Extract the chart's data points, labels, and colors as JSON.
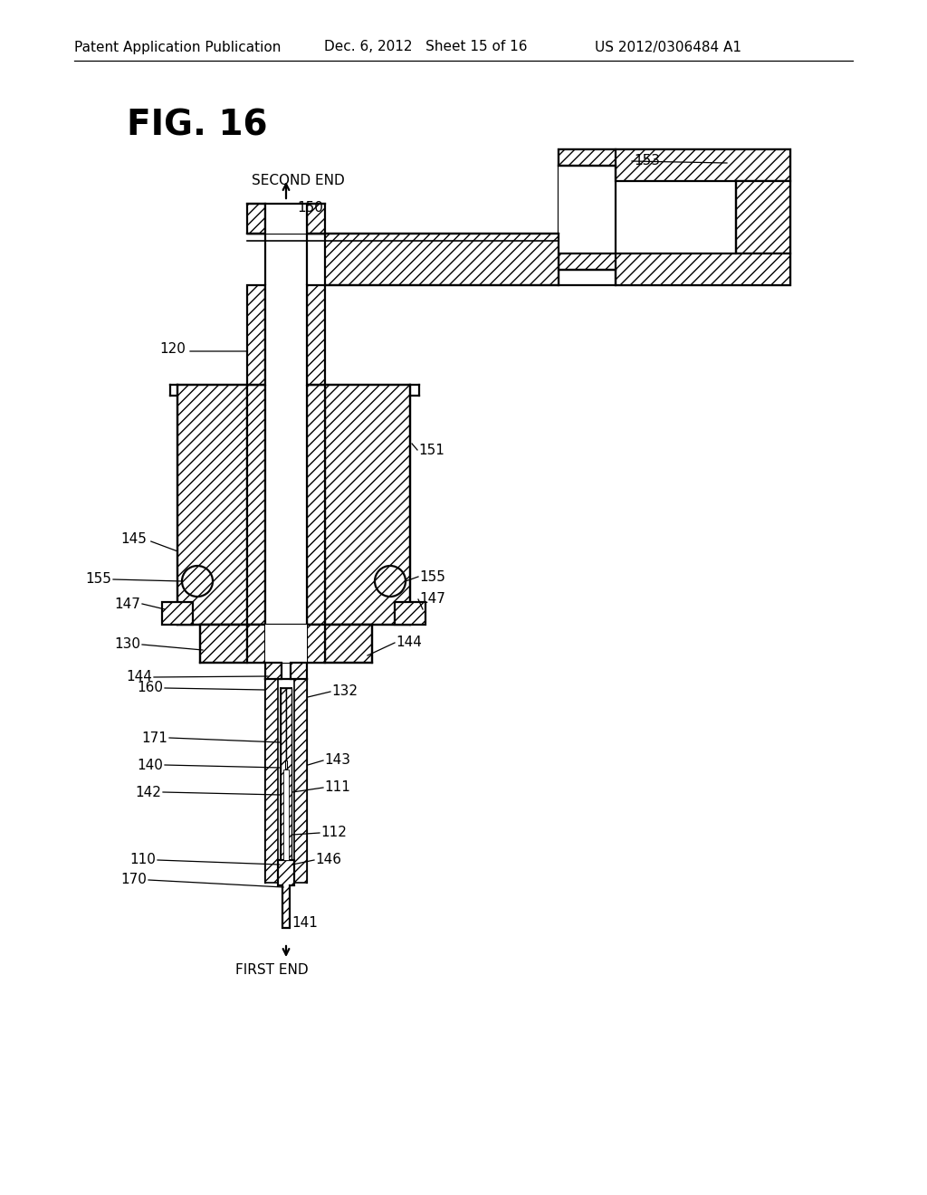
{
  "background": "#ffffff",
  "header_left": "Patent Application Publication",
  "header_mid": "Dec. 6, 2012   Sheet 15 of 16",
  "header_right": "US 2012/0306484 A1",
  "fig_title": "FIG. 16",
  "label_second_end": "SECOND END",
  "label_first_end": "FIRST END"
}
